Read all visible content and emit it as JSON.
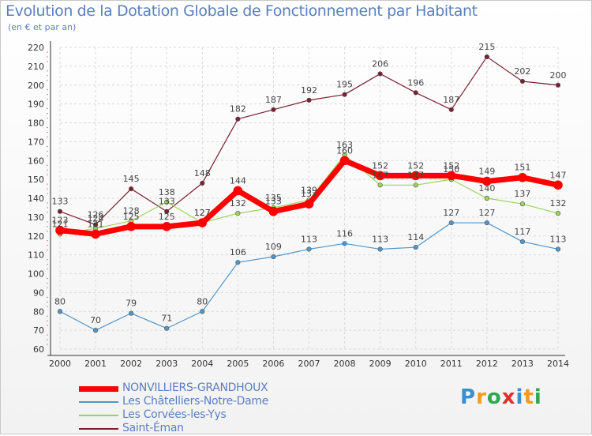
{
  "title": "Evolution de la Dotation Globale de Fonctionnement par Habitant",
  "subtitle": "(en € et par an)",
  "logo": {
    "letters": [
      "P",
      "r",
      "o",
      "x",
      "i",
      "t",
      "i"
    ],
    "colors": [
      "#3a8fd0",
      "#f29a1f",
      "#2fa84f",
      "#e0302c",
      "#3a8fd0",
      "#f29a1f",
      "#2fa84f"
    ]
  },
  "chart_data": {
    "type": "line",
    "title": "Evolution de la Dotation Globale de Fonctionnement par Habitant",
    "ylabel": "(en € et par an)",
    "xlabel": "",
    "ylim": [
      60,
      220
    ],
    "yticks": [
      60,
      70,
      80,
      90,
      100,
      110,
      120,
      130,
      140,
      150,
      160,
      170,
      180,
      190,
      200,
      210,
      220
    ],
    "x": [
      2000,
      2001,
      2002,
      2003,
      2004,
      2005,
      2006,
      2007,
      2008,
      2009,
      2010,
      2011,
      2012,
      2013,
      2014
    ],
    "grid": true,
    "legend_position": "bottom-left",
    "series": [
      {
        "name": "Saint-Éman",
        "color": "#7a2030",
        "width": 1.2,
        "marker": 2.8,
        "values": [
          133,
          126,
          145,
          133,
          148,
          182,
          187,
          192,
          195,
          206,
          196,
          187,
          215,
          202,
          200
        ]
      },
      {
        "name": "Les Corvées-les-Yys",
        "color": "#9ad45c",
        "width": 1.2,
        "marker": 2.8,
        "values": [
          121,
          124,
          128,
          138,
          127,
          132,
          135,
          139,
          163,
          147,
          147,
          150,
          140,
          137,
          132
        ]
      },
      {
        "name": "Les Châtelliers-Notre-Dame",
        "color": "#4f96cc",
        "width": 1.2,
        "marker": 2.8,
        "values": [
          80,
          70,
          79,
          71,
          80,
          106,
          109,
          113,
          116,
          113,
          114,
          127,
          127,
          117,
          113
        ]
      },
      {
        "name": "NONVILLIERS-GRANDHOUX",
        "color": "#ff0000",
        "width": 7,
        "marker": 5.5,
        "values": [
          123,
          121,
          125,
          125,
          127,
          144,
          133,
          137,
          160,
          152,
          152,
          152,
          149,
          151,
          147
        ]
      }
    ],
    "legend": [
      "NONVILLIERS-GRANDHOUX",
      "Les Châtelliers-Notre-Dame",
      "Les Corvées-les-Yys",
      "Saint-Éman"
    ]
  }
}
